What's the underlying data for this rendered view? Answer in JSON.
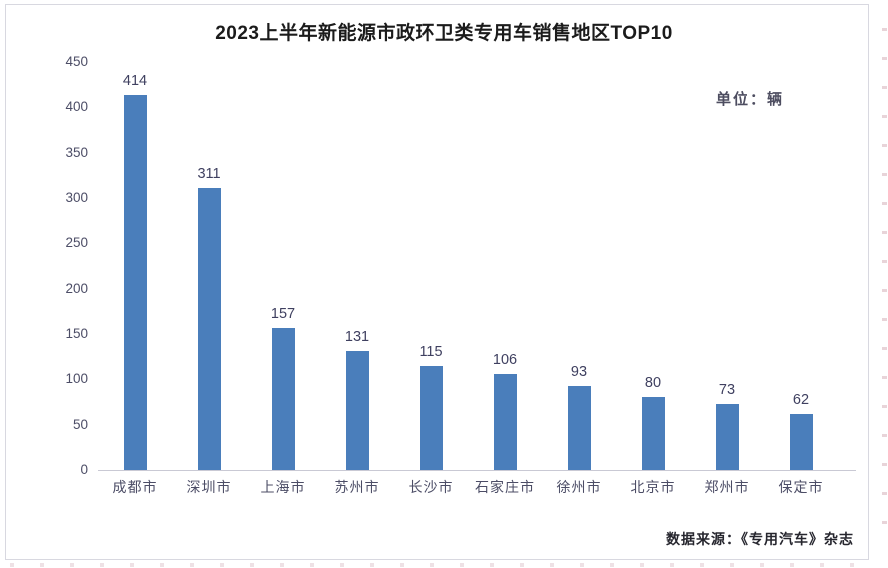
{
  "title": "2023上半年新能源市政环卫类专用车销售地区TOP10",
  "unit_label": "单位：辆",
  "source_label": "数据来源：《专用汽车》杂志",
  "colors": {
    "bar": "#4a7ebb",
    "title_text": "#1b1b1b",
    "axis_label": "#4c4d66",
    "value_label": "#3f4060",
    "axis_line": "#c9c9d4",
    "frame_border": "#d8d8e0",
    "source_text": "#26262e",
    "unit_text": "#4d4d60"
  },
  "chart_data": {
    "type": "bar",
    "title": "2023上半年新能源市政环卫类专用车销售地区TOP10",
    "categories": [
      "成都市",
      "深圳市",
      "上海市",
      "苏州市",
      "长沙市",
      "石家庄市",
      "徐州市",
      "北京市",
      "郑州市",
      "保定市"
    ],
    "values": [
      414,
      311,
      157,
      131,
      115,
      106,
      93,
      80,
      73,
      62
    ],
    "unit": "辆",
    "xlabel": "",
    "ylabel": "",
    "ylim": [
      0,
      450
    ],
    "yticks": [
      0,
      50,
      100,
      150,
      200,
      250,
      300,
      350,
      400,
      450
    ],
    "grid": false,
    "data_labels": true,
    "legend": "none",
    "source": "数据来源：《专用汽车》杂志"
  }
}
